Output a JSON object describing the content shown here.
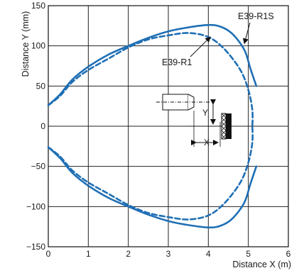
{
  "chart_data": {
    "type": "line",
    "title": "",
    "xlabel": "Distance X (m)",
    "ylabel": "Distance Y (mm)",
    "xlim": [
      0,
      6
    ],
    "ylim": [
      -150,
      150
    ],
    "xticks": [
      0,
      1,
      2,
      3,
      4,
      5,
      6
    ],
    "yticks": [
      150,
      100,
      50,
      0,
      -50,
      -100,
      -150
    ],
    "ytick_labels": [
      "150",
      "100",
      "50",
      "0",
      "−50",
      "−100",
      "−150"
    ],
    "grid": true,
    "series": [
      {
        "name": "E39-R1S",
        "color": "#1f6fb5",
        "style": "solid",
        "points": [
          [
            0,
            26
          ],
          [
            0.3,
            40
          ],
          [
            0.6,
            58
          ],
          [
            1.0,
            74
          ],
          [
            1.5,
            89
          ],
          [
            2.0,
            100
          ],
          [
            2.5,
            110
          ],
          [
            3.0,
            118
          ],
          [
            3.5,
            123
          ],
          [
            4.0,
            126
          ],
          [
            4.3,
            124
          ],
          [
            4.6,
            115
          ],
          [
            4.9,
            95
          ],
          [
            5.05,
            72
          ],
          [
            5.2,
            50
          ]
        ],
        "mirrored_lower_half": true
      },
      {
        "name": "E39-R1",
        "color": "#1f6fb5",
        "style": "dashed",
        "points": [
          [
            0,
            26
          ],
          [
            0.3,
            38
          ],
          [
            0.6,
            55
          ],
          [
            1.0,
            70
          ],
          [
            1.5,
            84
          ],
          [
            2.0,
            98
          ],
          [
            2.5,
            108
          ],
          [
            3.0,
            113
          ],
          [
            3.5,
            116
          ],
          [
            4.0,
            111
          ],
          [
            4.4,
            96
          ],
          [
            4.8,
            70
          ],
          [
            5.0,
            45
          ],
          [
            5.1,
            20
          ],
          [
            5.1,
            0
          ]
        ],
        "mirrored_lower_half": true
      }
    ],
    "annotations": [
      {
        "text": "E39-R1S",
        "points_to_x": 4.9,
        "points_to_y": 103
      },
      {
        "text": "E39-R1",
        "points_to_x": 4.05,
        "points_to_y": 111
      }
    ],
    "inset_labels": {
      "y_label": "Y",
      "x_label": "X"
    }
  }
}
